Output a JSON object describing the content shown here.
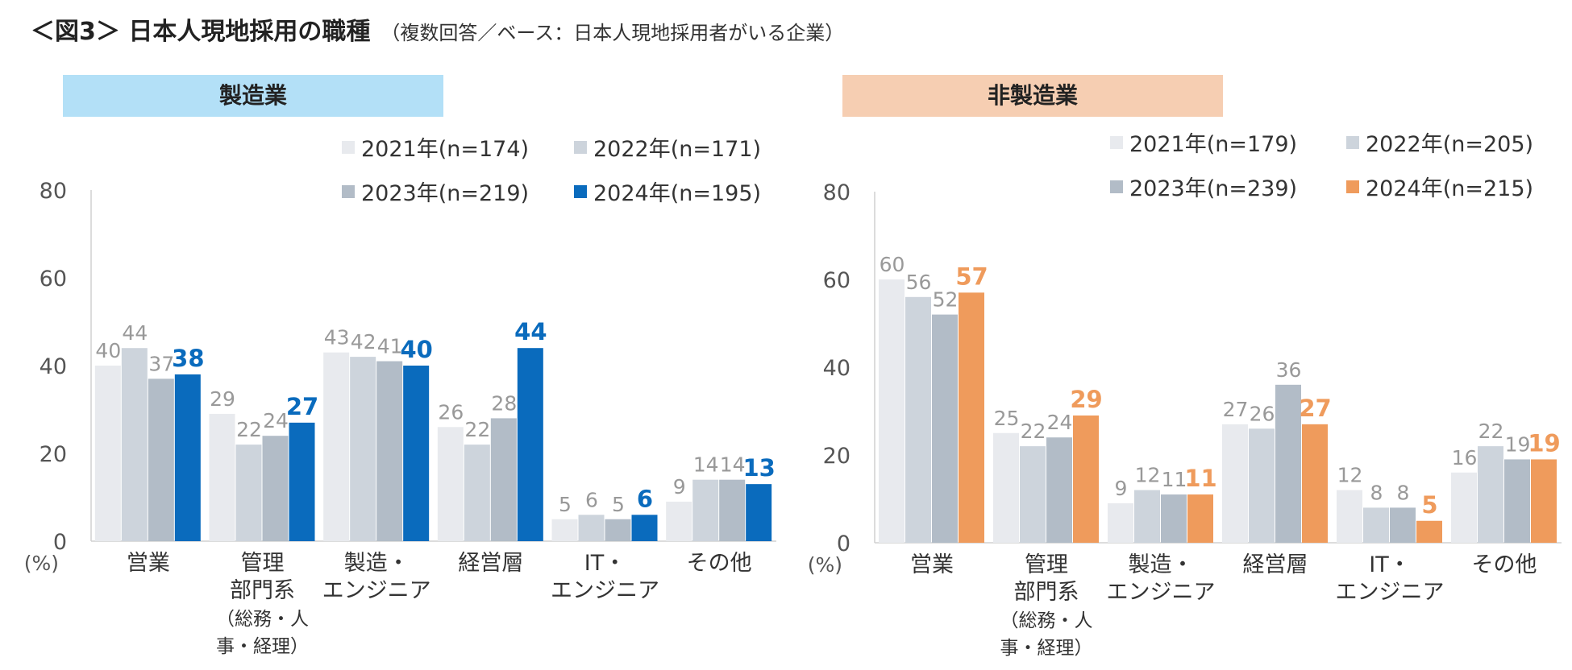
{
  "figure": {
    "title": "＜図3＞ 日本人現地採用の職種",
    "subtitle": "（複数回答／ベース：日本人現地採用者がいる企業）"
  },
  "chart_data": [
    {
      "type": "bar",
      "panel_title": "製造業",
      "band_color": "#b3e0f7",
      "ylabel": "(%)",
      "ylim": [
        0,
        80
      ],
      "yticks": [
        0,
        20,
        40,
        60,
        80
      ],
      "categories": [
        [
          "営業"
        ],
        [
          "管理",
          "部門系",
          "（総務・人",
          "事・経理）"
        ],
        [
          "製造・",
          "エンジニア"
        ],
        [
          "経営層"
        ],
        [
          "IT・",
          "エンジニア"
        ],
        [
          "その他"
        ]
      ],
      "series": [
        {
          "name": "2021年(n=174)",
          "color": "#e8eaee",
          "label_color": "#999999",
          "bold": false,
          "values": [
            40,
            29,
            43,
            26,
            5,
            9
          ]
        },
        {
          "name": "2022年(n=171)",
          "color": "#cdd4dc",
          "label_color": "#999999",
          "bold": false,
          "values": [
            44,
            22,
            42,
            22,
            6,
            14
          ]
        },
        {
          "name": "2023年(n=219)",
          "color": "#b2bcc7",
          "label_color": "#999999",
          "bold": false,
          "values": [
            37,
            24,
            41,
            28,
            5,
            14
          ]
        },
        {
          "name": "2024年(n=195)",
          "color": "#0a6bbd",
          "label_color": "#0a6bbd",
          "bold": true,
          "values": [
            38,
            27,
            40,
            44,
            6,
            13
          ]
        }
      ]
    },
    {
      "type": "bar",
      "panel_title": "非製造業",
      "band_color": "#f6ceb2",
      "ylabel": "(%)",
      "ylim": [
        0,
        80
      ],
      "yticks": [
        0,
        20,
        40,
        60,
        80
      ],
      "categories": [
        [
          "営業"
        ],
        [
          "管理",
          "部門系",
          "（総務・人",
          "事・経理）"
        ],
        [
          "製造・",
          "エンジニア"
        ],
        [
          "経営層"
        ],
        [
          "IT・",
          "エンジニア"
        ],
        [
          "その他"
        ]
      ],
      "series": [
        {
          "name": "2021年(n=179)",
          "color": "#e8eaee",
          "label_color": "#999999",
          "bold": false,
          "values": [
            60,
            25,
            9,
            27,
            12,
            16
          ]
        },
        {
          "name": "2022年(n=205)",
          "color": "#cdd4dc",
          "label_color": "#999999",
          "bold": false,
          "values": [
            56,
            22,
            12,
            26,
            8,
            22
          ]
        },
        {
          "name": "2023年(n=239)",
          "color": "#b2bcc7",
          "label_color": "#999999",
          "bold": false,
          "values": [
            52,
            24,
            11,
            36,
            8,
            19
          ]
        },
        {
          "name": "2024年(n=215)",
          "color": "#ef9b5c",
          "label_color": "#ef9b5c",
          "bold": true,
          "values": [
            57,
            29,
            11,
            27,
            5,
            19
          ]
        }
      ]
    }
  ]
}
